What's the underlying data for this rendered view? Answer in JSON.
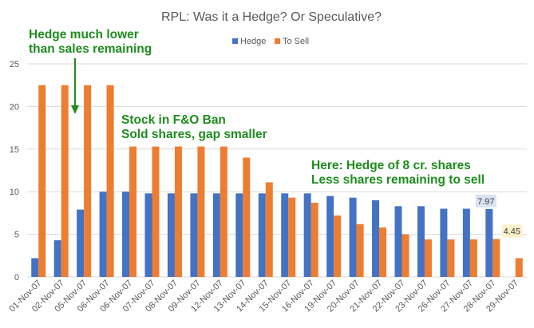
{
  "chart_data": {
    "type": "bar",
    "title": "RPL: Was it a Hedge? Or Speculative?",
    "xlabel": "",
    "ylabel": "",
    "ylim": [
      0,
      25
    ],
    "yticks": [
      0,
      5,
      10,
      15,
      20,
      25
    ],
    "grid": true,
    "legend_position": "top",
    "categories": [
      "01-Nov-07",
      "02-Nov-07",
      "05-Nov-07",
      "06-Nov-07",
      "06-Nov-07",
      "07-Nov-07",
      "08-Nov-07",
      "09-Nov-07",
      "12-Nov-07",
      "13-Nov-07",
      "14-Nov-07",
      "15-Nov-07",
      "16-Nov-07",
      "19-Nov-07",
      "20-Nov-07",
      "21-Nov-07",
      "22-Nov-07",
      "23-Nov-07",
      "26-Nov-07",
      "27-Nov-07",
      "28-Nov-07",
      "29-Nov-07"
    ],
    "series": [
      {
        "name": "Hedge",
        "color": "#4472C4",
        "values": [
          2.2,
          4.3,
          7.9,
          10.0,
          10.0,
          9.8,
          9.8,
          9.8,
          9.8,
          9.8,
          9.8,
          9.8,
          9.8,
          9.5,
          9.3,
          9.0,
          8.3,
          8.3,
          8.0,
          8.0,
          7.97,
          null
        ]
      },
      {
        "name": "To Sell",
        "color": "#ED7D31",
        "values": [
          22.5,
          22.5,
          22.5,
          22.5,
          15.3,
          15.3,
          15.3,
          15.3,
          15.3,
          14.0,
          11.1,
          9.3,
          8.7,
          7.2,
          6.2,
          5.8,
          5.0,
          4.4,
          4.4,
          4.4,
          4.45,
          2.2
        ]
      }
    ],
    "data_labels": [
      {
        "series": 0,
        "index": 20,
        "text": "7.97",
        "bg": "#DAE3F3"
      },
      {
        "series": 1,
        "index": 20,
        "text": "4.45",
        "bg": "#FFF2CC"
      }
    ],
    "annotations": [
      {
        "lines": [
          "Hedge much lower",
          "than sales remaining"
        ],
        "color": "#1E8C1E"
      },
      {
        "lines": [
          "Stock in F&O Ban",
          "Sold shares, gap smaller"
        ],
        "color": "#1E8C1E"
      },
      {
        "lines": [
          "Here: Hedge of 8 cr. shares",
          "Less shares remaining to sell"
        ],
        "color": "#1E8C1E"
      }
    ],
    "arrow_color": "#1E8C1E",
    "grid_color": "#D9D9D9"
  }
}
